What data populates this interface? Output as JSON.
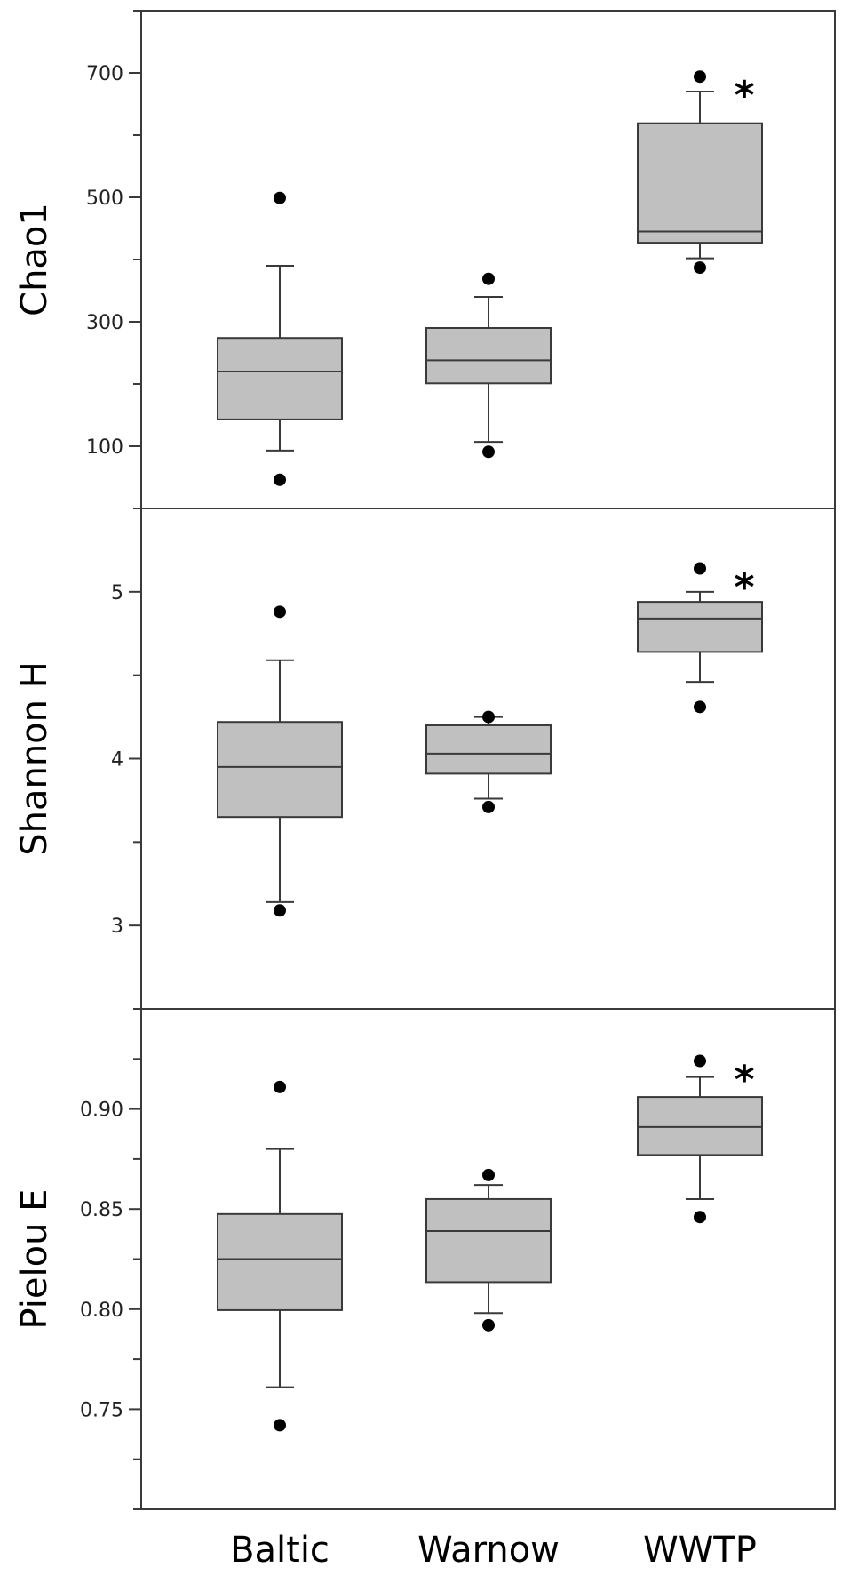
{
  "chart_data": [
    {
      "type": "box",
      "ylabel": "Chao1",
      "ylim": [
        0,
        800
      ],
      "yticks": [
        100,
        300,
        500,
        700
      ],
      "ytick_labels": [
        "100",
        "300",
        "500",
        "700"
      ],
      "minor_ticks": [
        200,
        400,
        600,
        800
      ],
      "categories": [
        "Baltic",
        "Warnow",
        "WWTP"
      ],
      "boxes": [
        {
          "q1": 143,
          "median": 220,
          "q3": 274,
          "whisker_low": 93,
          "whisker_high": 390,
          "outliers": [
            46,
            499
          ]
        },
        {
          "q1": 201,
          "median": 238,
          "q3": 290,
          "whisker_low": 107,
          "whisker_high": 340,
          "outliers": [
            91,
            369
          ]
        },
        {
          "q1": 427,
          "median": 445,
          "q3": 619,
          "whisker_low": 402,
          "whisker_high": 670,
          "outliers": [
            387,
            694
          ]
        }
      ],
      "annotations": [
        {
          "category": "WWTP",
          "text": "*"
        }
      ]
    },
    {
      "type": "box",
      "ylabel": "Shannon H",
      "ylim": [
        2.5,
        5.5
      ],
      "yticks": [
        3,
        4,
        5
      ],
      "ytick_labels": [
        "3",
        "4",
        "5"
      ],
      "minor_ticks": [
        2.5,
        3.5,
        4.5,
        5.5
      ],
      "categories": [
        "Baltic",
        "Warnow",
        "WWTP"
      ],
      "boxes": [
        {
          "q1": 3.65,
          "median": 3.95,
          "q3": 4.22,
          "whisker_low": 3.14,
          "whisker_high": 4.59,
          "outliers": [
            3.09,
            4.88
          ]
        },
        {
          "q1": 3.91,
          "median": 4.03,
          "q3": 4.2,
          "whisker_low": 3.76,
          "whisker_high": 4.25,
          "outliers": [
            3.71,
            4.25
          ]
        },
        {
          "q1": 4.64,
          "median": 4.84,
          "q3": 4.94,
          "whisker_low": 4.46,
          "whisker_high": 5.0,
          "outliers": [
            4.31,
            5.14
          ]
        }
      ],
      "annotations": [
        {
          "category": "WWTP",
          "text": "*"
        }
      ]
    },
    {
      "type": "box",
      "ylabel": "Pielou E",
      "ylim": [
        0.7,
        0.95
      ],
      "yticks": [
        0.75,
        0.8,
        0.85,
        0.9
      ],
      "ytick_labels": [
        "0.75",
        "0.80",
        "0.85",
        "0.90"
      ],
      "minor_ticks": [
        0.7,
        0.725,
        0.775,
        0.825,
        0.875,
        0.925,
        0.95
      ],
      "categories": [
        "Baltic",
        "Warnow",
        "WWTP"
      ],
      "boxes": [
        {
          "q1": 0.7995,
          "median": 0.825,
          "q3": 0.8475,
          "whisker_low": 0.761,
          "whisker_high": 0.88,
          "outliers": [
            0.742,
            0.911
          ]
        },
        {
          "q1": 0.8135,
          "median": 0.839,
          "q3": 0.855,
          "whisker_low": 0.798,
          "whisker_high": 0.862,
          "outliers": [
            0.792,
            0.867
          ]
        },
        {
          "q1": 0.877,
          "median": 0.891,
          "q3": 0.906,
          "whisker_low": 0.855,
          "whisker_high": 0.916,
          "outliers": [
            0.846,
            0.924
          ]
        }
      ],
      "annotations": [
        {
          "category": "WWTP",
          "text": "*"
        }
      ]
    }
  ],
  "colors": {
    "box_fill": "#c0c0c0",
    "stroke": "#3a3a3a",
    "points": "#000000"
  }
}
